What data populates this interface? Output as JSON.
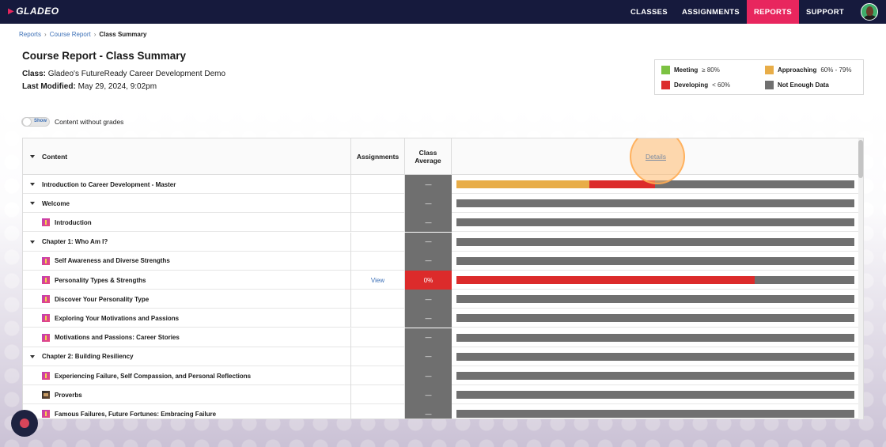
{
  "colors": {
    "meeting": "#7cc242",
    "approaching": "#e8ad48",
    "developing": "#dc2b2b",
    "not_enough": "#707070",
    "nav_bg": "#161a3d",
    "nav_active": "#e8265e"
  },
  "logo": {
    "text": "GLADEO"
  },
  "nav": {
    "items": [
      {
        "label": "CLASSES",
        "active": false
      },
      {
        "label": "ASSIGNMENTS",
        "active": false
      },
      {
        "label": "REPORTS",
        "active": true
      },
      {
        "label": "SUPPORT",
        "active": false
      }
    ]
  },
  "breadcrumb": {
    "items": [
      "Reports",
      "Course Report"
    ],
    "current": "Class Summary"
  },
  "page": {
    "title": "Course Report - Class Summary",
    "class_label": "Class:",
    "class_value": "Gladeo's FutureReady Career Development Demo",
    "modified_label": "Last Modified:",
    "modified_value": "May 29, 2024, 9:02pm"
  },
  "legend": {
    "meeting_label": "Meeting",
    "meeting_range": "≥ 80%",
    "approaching_label": "Approaching",
    "approaching_range": "60% - 79%",
    "developing_label": "Developing",
    "developing_range": "< 60%",
    "not_enough_label": "Not Enough Data"
  },
  "toggle": {
    "label": "Show",
    "text": "Content without grades"
  },
  "table": {
    "headers": {
      "content": "Content",
      "assignments": "Assignments",
      "avg_line1": "Class",
      "avg_line2": "Average",
      "details": "Details"
    },
    "rows": [
      {
        "title": "Introduction to Career Development - Master",
        "type": "section",
        "assign": "",
        "avg": "—",
        "avg_status": "none",
        "bar": {
          "approaching": 0.334,
          "developing": 0.166
        }
      },
      {
        "title": "Welcome",
        "type": "section",
        "assign": "",
        "avg": "—",
        "avg_status": "none",
        "bar": {}
      },
      {
        "title": "Introduction",
        "type": "child",
        "icon": "lesson-icon",
        "assign": "",
        "avg": "—",
        "avg_status": "none",
        "bar": {}
      },
      {
        "title": "Chapter 1: Who Am I?",
        "type": "section",
        "assign": "",
        "avg": "—",
        "avg_status": "none",
        "bar": {}
      },
      {
        "title": "Self Awareness and Diverse Strengths",
        "type": "child",
        "icon": "lesson-icon",
        "assign": "",
        "avg": "—",
        "avg_status": "none",
        "bar": {}
      },
      {
        "title": "Personality Types & Strengths",
        "type": "child",
        "icon": "lesson-icon",
        "assign": "View",
        "avg": "0%",
        "avg_status": "developing",
        "bar": {
          "developing": 0.75
        }
      },
      {
        "title": "Discover Your Personality Type",
        "type": "child",
        "icon": "lesson-icon",
        "assign": "",
        "avg": "—",
        "avg_status": "none",
        "bar": {}
      },
      {
        "title": "Exploring Your Motivations and Passions",
        "type": "child",
        "icon": "lesson-icon",
        "assign": "",
        "avg": "—",
        "avg_status": "none",
        "bar": {}
      },
      {
        "title": "Motivations and Passions: Career Stories",
        "type": "child",
        "icon": "lesson-icon",
        "assign": "",
        "avg": "—",
        "avg_status": "none",
        "bar": {}
      },
      {
        "title": "Chapter 2: Building Resiliency",
        "type": "section",
        "assign": "",
        "avg": "—",
        "avg_status": "none",
        "bar": {}
      },
      {
        "title": "Experiencing Failure, Self Compassion, and Personal Reflections",
        "type": "child",
        "icon": "lesson-icon",
        "assign": "",
        "avg": "—",
        "avg_status": "none",
        "bar": {}
      },
      {
        "title": "Proverbs",
        "type": "child",
        "icon": "video-icon",
        "assign": "",
        "avg": "—",
        "avg_status": "none",
        "bar": {}
      },
      {
        "title": "Famous Failures, Future Fortunes: Embracing Failure",
        "type": "child",
        "icon": "lesson-icon",
        "assign": "",
        "avg": "—",
        "avg_status": "none",
        "bar": {}
      }
    ]
  }
}
